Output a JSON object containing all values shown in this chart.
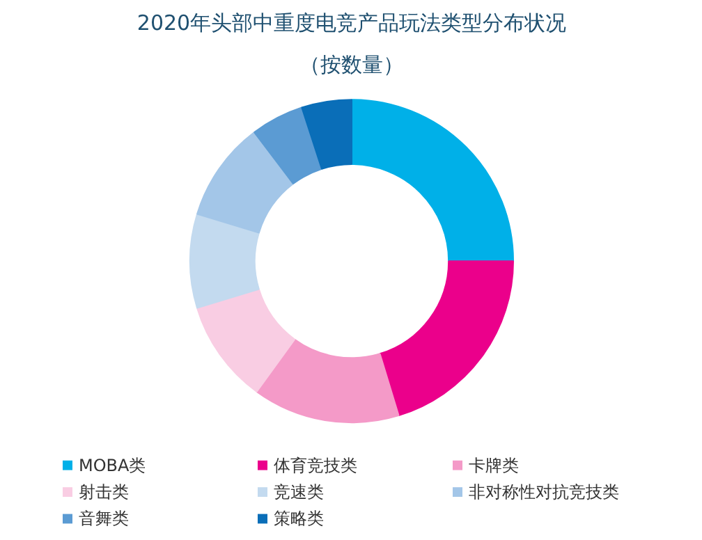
{
  "chart_data": {
    "type": "donut",
    "title": "2020年头部中重度电竞产品玩法类型分布状况",
    "subtitle": "（按数量）",
    "categories": [
      "MOBA类",
      "体育竞技类",
      "卡牌类",
      "射击类",
      "竞速类",
      "非对称性对抗竞技类",
      "音舞类",
      "策略类"
    ],
    "values": [
      25,
      20.3,
      14.7,
      10.3,
      9.4,
      10,
      5.3,
      5
    ],
    "colors": [
      "#00b0e8",
      "#eb008b",
      "#f49ac8",
      "#f9cde3",
      "#c3daef",
      "#a3c6e8",
      "#5b9bd3",
      "#0a6eb8"
    ],
    "legend": "bottom"
  }
}
